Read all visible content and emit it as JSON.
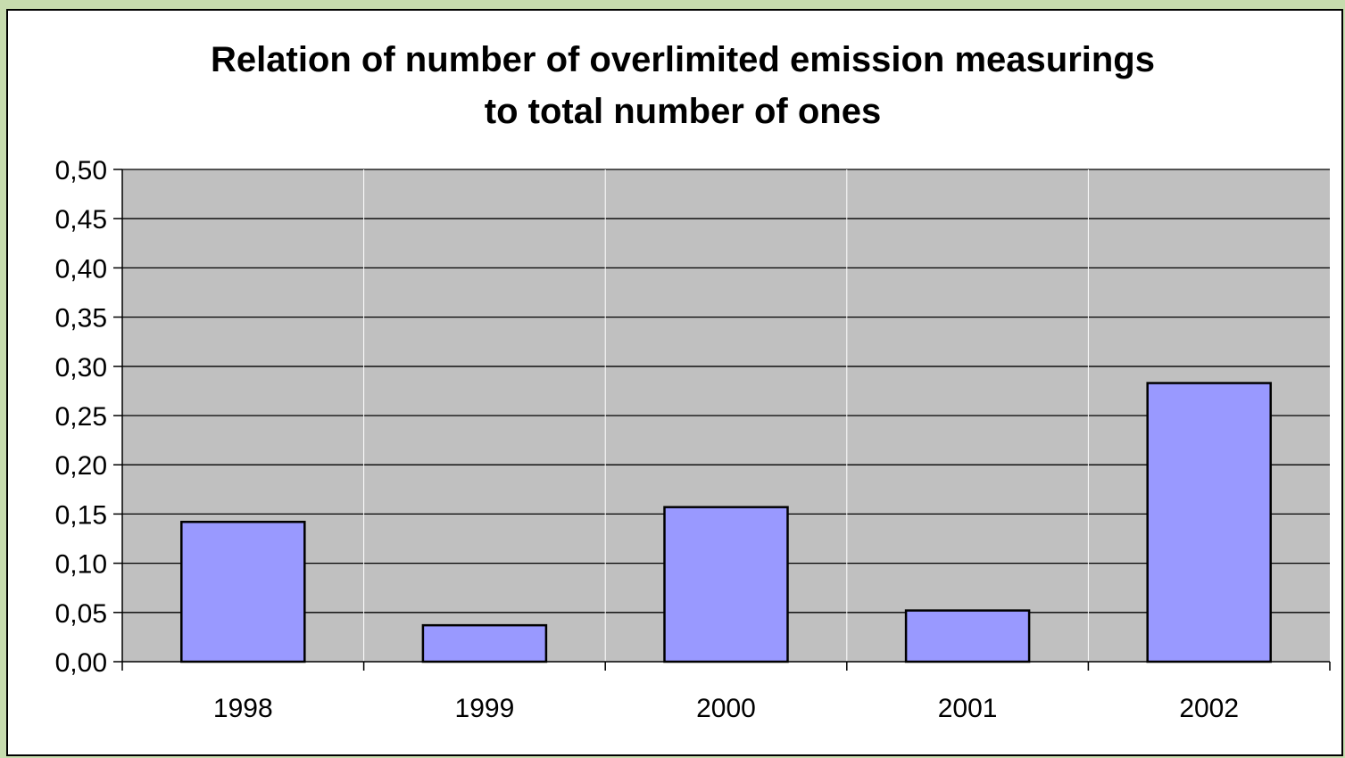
{
  "chart_data": {
    "type": "bar",
    "title_lines": [
      "Relation of number of overlimited emission measurings",
      "to total number of ones"
    ],
    "categories": [
      "1998",
      "1999",
      "2000",
      "2001",
      "2002"
    ],
    "values": [
      0.142,
      0.037,
      0.157,
      0.052,
      0.283
    ],
    "ylim": [
      0,
      0.5
    ],
    "yticks": [
      0.0,
      0.05,
      0.1,
      0.15,
      0.2,
      0.25,
      0.3,
      0.35,
      0.4,
      0.45,
      0.5
    ],
    "ytick_labels": [
      "0,00",
      "0,05",
      "0,10",
      "0,15",
      "0,20",
      "0,25",
      "0,30",
      "0,35",
      "0,40",
      "0,45",
      "0,50"
    ],
    "xlabel": "",
    "ylabel": "",
    "grid": true,
    "legend": "none",
    "colors": {
      "bar_fill": "#9999ff",
      "bar_stroke": "#000000",
      "plot_background": "#c0c0c0",
      "gridline": "#000000",
      "page_background": "#c7dcae"
    }
  }
}
